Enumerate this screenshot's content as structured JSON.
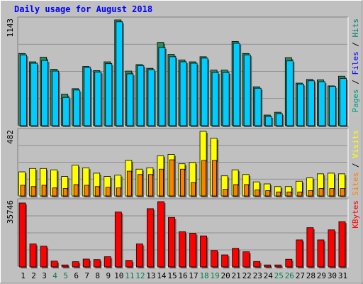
{
  "chart_data": {
    "type": "bar",
    "title": "Daily usage for August 2018",
    "categories": [
      "1",
      "2",
      "3",
      "4",
      "5",
      "6",
      "7",
      "8",
      "9",
      "10",
      "11",
      "12",
      "13",
      "14",
      "15",
      "16",
      "17",
      "18",
      "19",
      "20",
      "21",
      "22",
      "23",
      "24",
      "25",
      "26",
      "27",
      "28",
      "29",
      "30",
      "31"
    ],
    "weekend_days": [
      "4",
      "5",
      "11",
      "12",
      "18",
      "19",
      "25",
      "26"
    ],
    "colors": {
      "title": "#0000ff",
      "weekday_label": "#000000",
      "weekend_label": "#00804a",
      "pages": "#00a080",
      "files": "#0000ff",
      "hits": "#00806f",
      "sites": "#ff8000",
      "visits": "#ffff00",
      "kbytes": "#ff0000"
    },
    "panels": [
      {
        "name": "hits-files-pages",
        "ymax_label": "1143",
        "ymax": 1143,
        "side_label": {
          "first": "Pages",
          "sep1": " / ",
          "second": "Files",
          "sep2": " / ",
          "third": "Hits"
        },
        "series": [
          {
            "name": "Hits",
            "color": "#2e8b57",
            "values": [
              780,
              690,
              740,
              610,
              340,
              400,
              640,
              595,
              690,
              1143,
              590,
              660,
              620,
              900,
              770,
              710,
              690,
              745,
              600,
              600,
              910,
              780,
              420,
              115,
              145,
              735,
              460,
              500,
              495,
              430,
              535
            ]
          },
          {
            "name": "Files",
            "color": "#00ccff",
            "values": [
              765,
              675,
              705,
              590,
              305,
              385,
              630,
              580,
              670,
              1122,
              560,
              650,
              605,
              845,
              745,
              690,
              675,
              730,
              575,
              575,
              890,
              765,
              405,
              100,
              130,
              700,
              450,
              485,
              475,
              425,
              510
            ]
          }
        ]
      },
      {
        "name": "visits-sites",
        "ymax_label": "482",
        "ymax": 482,
        "side_label": {
          "first": "Sites",
          "sep1": " / ",
          "second": "Visits"
        },
        "series": [
          {
            "name": "Visits",
            "color": "#ffff00",
            "values": [
              180,
              205,
              205,
              195,
              145,
              230,
              210,
              170,
              145,
              155,
              265,
              200,
              210,
              300,
              310,
              240,
              250,
              482,
              430,
              150,
              195,
              160,
              105,
              90,
              70,
              70,
              110,
              135,
              165,
              170,
              165
            ]
          },
          {
            "name": "Sites",
            "color": "#ff8000",
            "values": [
              80,
              70,
              80,
              60,
              55,
              85,
              80,
              70,
              65,
              60,
              185,
              160,
              160,
              200,
              270,
              200,
              100,
              265,
              265,
              50,
              85,
              85,
              45,
              40,
              30,
              30,
              30,
              40,
              55,
              55,
              55
            ]
          }
        ]
      },
      {
        "name": "kbytes",
        "ymax_label": "35746",
        "ymax": 35746,
        "side_label": {
          "first": "KBytes"
        },
        "series": [
          {
            "name": "KBytes",
            "color": "#ff0000",
            "values": [
              35000,
              12600,
              11400,
              3200,
              1100,
              2900,
              4300,
              4000,
              5600,
              30100,
              3600,
              12600,
              31900,
              35746,
              27100,
              19300,
              18400,
              17000,
              9000,
              6600,
              10200,
              8300,
              3000,
              1100,
              1100,
              4200,
              14800,
              21500,
              14800,
              20300,
              24800
            ]
          }
        ]
      }
    ]
  }
}
